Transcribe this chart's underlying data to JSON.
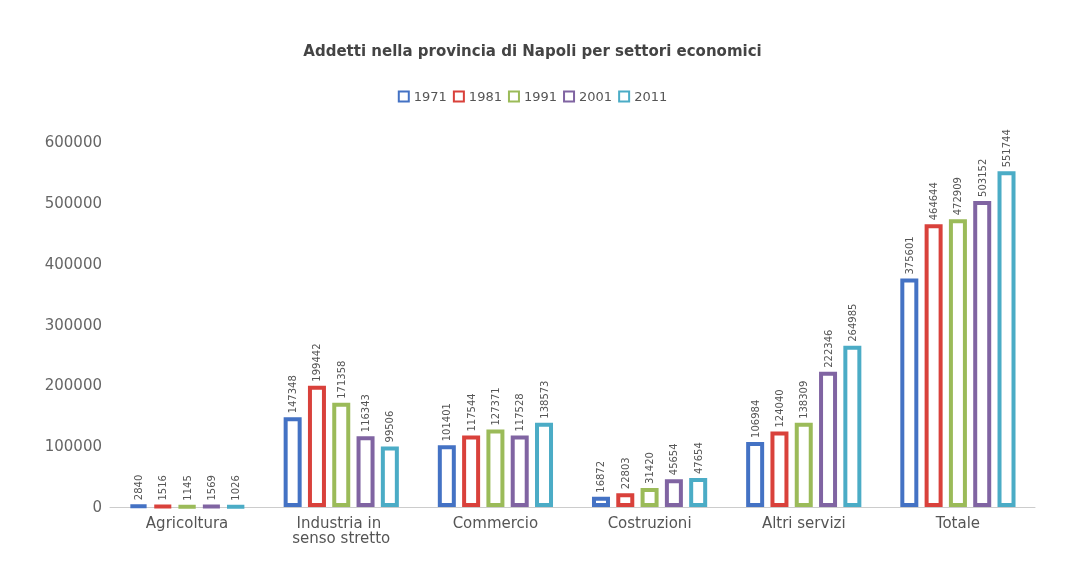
{
  "chart_data": {
    "type": "bar",
    "title": "Addetti nella provincia di Napoli per settori economici",
    "categories": [
      "Agricoltura",
      "Industria in senso stretto",
      "Commercio",
      "Costruzioni",
      "Altri servizi",
      "Totale"
    ],
    "series": [
      {
        "name": "1971",
        "color": "#4472c4",
        "values": [
          2840,
          147348,
          101401,
          16872,
          106984,
          375601
        ]
      },
      {
        "name": "1981",
        "color": "#d9413b",
        "values": [
          1516,
          199442,
          117544,
          22803,
          124040,
          464644
        ]
      },
      {
        "name": "1991",
        "color": "#9bbb59",
        "values": [
          1145,
          171358,
          127371,
          31420,
          138309,
          472909
        ]
      },
      {
        "name": "2001",
        "color": "#8064a2",
        "values": [
          1569,
          116343,
          117528,
          45654,
          222346,
          503152
        ]
      },
      {
        "name": "2011",
        "color": "#4bacc6",
        "values": [
          1026,
          99506,
          138573,
          47654,
          264985,
          551744
        ]
      }
    ],
    "ylim": [
      0,
      600000
    ],
    "yticks": [
      0,
      100000,
      200000,
      300000,
      400000,
      500000,
      600000
    ],
    "grid": false,
    "legend": "top",
    "data_labels": true
  }
}
